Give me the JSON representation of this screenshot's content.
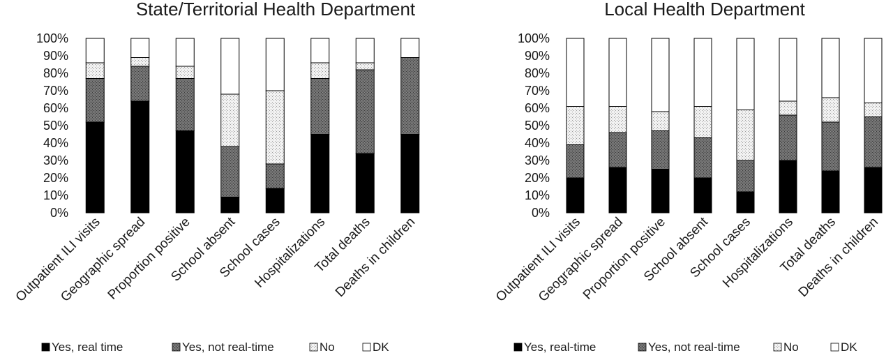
{
  "chart_data": [
    {
      "type": "bar",
      "stacked": true,
      "percent": true,
      "title": "State/Territorial Health Department",
      "categories": [
        "Outpatient ILI visits",
        "Geographic spread",
        "Proportion positive",
        "School absent",
        "School cases",
        "Hospitalizations",
        "Total deaths",
        "Deaths in children"
      ],
      "series": [
        {
          "name": "Yes, real time",
          "pattern": "solid-black",
          "values": [
            52,
            64,
            47,
            9,
            14,
            45,
            34,
            45
          ]
        },
        {
          "name": "Yes, not real-time",
          "pattern": "dark-stipple",
          "values": [
            25,
            20,
            30,
            29,
            14,
            32,
            48,
            44
          ]
        },
        {
          "name": "No",
          "pattern": "light-stipple",
          "values": [
            9,
            5,
            7,
            30,
            42,
            9,
            4,
            0
          ]
        },
        {
          "name": "DK",
          "pattern": "white",
          "values": [
            14,
            11,
            16,
            32,
            30,
            14,
            14,
            11
          ]
        }
      ],
      "yticks": [
        "0%",
        "10%",
        "20%",
        "30%",
        "40%",
        "50%",
        "60%",
        "70%",
        "80%",
        "90%",
        "100%"
      ],
      "ylim": [
        0,
        100
      ],
      "legend_position": "bottom"
    },
    {
      "type": "bar",
      "stacked": true,
      "percent": true,
      "title": "Local Health Department",
      "categories": [
        "Outpatient ILI visits",
        "Geographic spread",
        "Proportion positive",
        "School absent",
        "School cases",
        "Hospitalizations",
        "Total deaths",
        "Deaths in children"
      ],
      "series": [
        {
          "name": "Yes, real-time",
          "pattern": "solid-black",
          "values": [
            20,
            26,
            25,
            20,
            12,
            30,
            24,
            26
          ]
        },
        {
          "name": "Yes, not real-time",
          "pattern": "dark-stipple",
          "values": [
            19,
            20,
            22,
            23,
            18,
            26,
            28,
            29
          ]
        },
        {
          "name": "No",
          "pattern": "light-stipple",
          "values": [
            22,
            15,
            11,
            18,
            29,
            8,
            14,
            8
          ]
        },
        {
          "name": "DK",
          "pattern": "white",
          "values": [
            39,
            39,
            42,
            39,
            41,
            36,
            34,
            37
          ]
        }
      ],
      "yticks": [
        "0%",
        "10%",
        "20%",
        "30%",
        "40%",
        "50%",
        "60%",
        "70%",
        "80%",
        "90%",
        "100%"
      ],
      "ylim": [
        0,
        100
      ],
      "legend_position": "bottom"
    }
  ]
}
